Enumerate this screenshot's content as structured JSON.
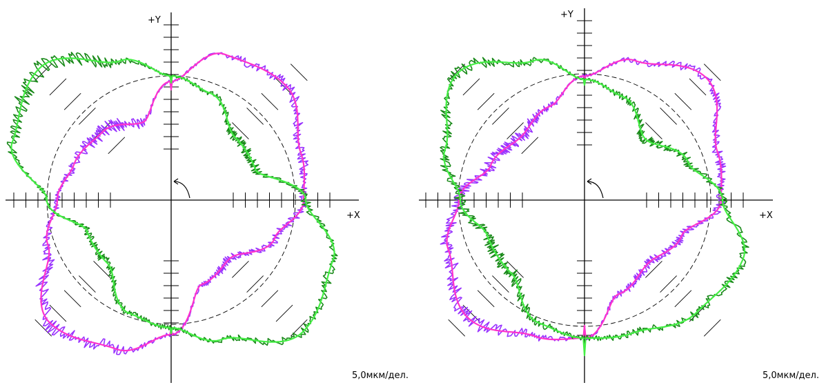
{
  "scale_label": "5,0мкм/дел.",
  "axis_labels": {
    "x": "+X",
    "y": "+Y"
  },
  "colors": {
    "axes": "#000000",
    "reference_circle": "#000000",
    "series_purple_raw": "#9933ff",
    "series_purple_mean": "#ff33cc",
    "series_green_raw": "#1a8a1a",
    "series_green_mean": "#44ee44"
  },
  "chart_data": [
    {
      "type": "polar",
      "scale_label": "5,0мкм/дел.",
      "axis_labels": {
        "x": "+X",
        "y": "+Y"
      },
      "grid": false,
      "series": [
        {
          "color": "#9933ff",
          "kind": "raw-trace"
        },
        {
          "color": "#ff33cc",
          "kind": "mean-trace"
        },
        {
          "color": "#1a8a1a",
          "kind": "raw-trace"
        },
        {
          "color": "#44ee44",
          "kind": "mean-trace"
        }
      ]
    },
    {
      "type": "polar",
      "scale_label": "5,0мкм/дел.",
      "axis_labels": {
        "x": "+X",
        "y": "+Y"
      },
      "grid": false,
      "series": [
        {
          "color": "#9933ff",
          "kind": "raw-trace"
        },
        {
          "color": "#ff33cc",
          "kind": "mean-trace"
        },
        {
          "color": "#1a8a1a",
          "kind": "raw-trace"
        },
        {
          "color": "#44ee44",
          "kind": "mean-trace"
        }
      ]
    }
  ]
}
